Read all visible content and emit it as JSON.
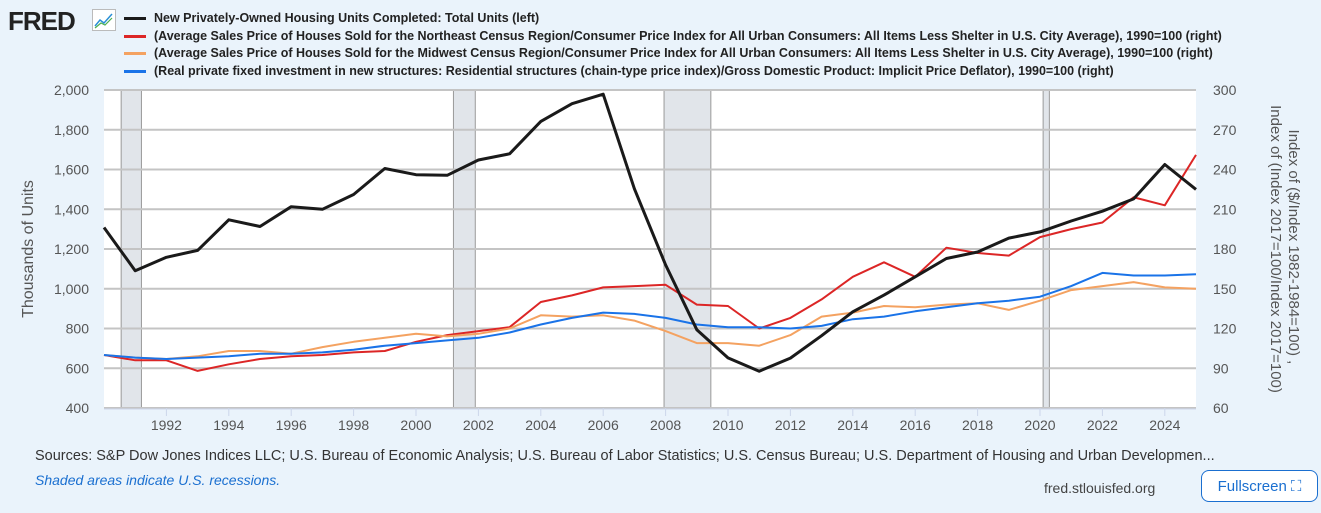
{
  "header": {
    "logo": "FRED"
  },
  "links": {
    "sources": "Sources: S&P Dow Jones Indices LLC; U.S. Bureau of Economic Analysis; U.S. Bureau of Labor Statistics; U.S. Census Bureau; U.S. Department of Housing and Urban Developmen...",
    "recession_note": "Shaded areas indicate U.S. recessions.",
    "site": "fred.stlouisfed.org",
    "fullscreen": "Fullscreen"
  },
  "chart_data": {
    "type": "line",
    "x": [
      1990,
      1991,
      1992,
      1993,
      1994,
      1995,
      1996,
      1997,
      1998,
      1999,
      2000,
      2001,
      2002,
      2003,
      2004,
      2005,
      2006,
      2007,
      2008,
      2009,
      2010,
      2011,
      2012,
      2013,
      2014,
      2015,
      2016,
      2017,
      2018,
      2019,
      2020,
      2021,
      2022,
      2023,
      2024,
      2025
    ],
    "xlim": [
      1990,
      2025
    ],
    "xticks": [
      "1992",
      "1994",
      "1996",
      "1998",
      "2000",
      "2002",
      "2004",
      "2006",
      "2008",
      "2010",
      "2012",
      "2014",
      "2016",
      "2018",
      "2020",
      "2022",
      "2024"
    ],
    "ylabel_left": "Thousands of Units",
    "ylabel_right": "Index of ($/Index 1982-1984=100) , Index of (Index 2017=100/Index 2017=100)",
    "ylim_left": [
      400,
      2000
    ],
    "ylim_right": [
      60,
      300
    ],
    "yticks_left": [
      "2,000",
      "1,800",
      "1,600",
      "1,400",
      "1,200",
      "1,000",
      "800",
      "600",
      "400"
    ],
    "yticks_right": [
      "300",
      "270",
      "240",
      "210",
      "180",
      "150",
      "120",
      "90",
      "60"
    ],
    "grid": true,
    "legend_position": "top",
    "recessions": [
      [
        1990.55,
        1991.2
      ],
      [
        2001.2,
        2001.9
      ],
      [
        2007.95,
        2009.45
      ],
      [
        2020.1,
        2020.3
      ]
    ],
    "series": [
      {
        "name": "New Privately-Owned Housing Units Completed: Total Units (left)",
        "color": "#1a1a1a",
        "axis": "left",
        "width": 3,
        "values": [
          1308,
          1091,
          1158,
          1193,
          1347,
          1313,
          1413,
          1400,
          1474,
          1605,
          1574,
          1571,
          1648,
          1679,
          1842,
          1931,
          1979,
          1503,
          1120,
          794,
          652,
          585,
          651,
          764,
          884,
          968,
          1060,
          1152,
          1185,
          1255,
          1286,
          1341,
          1390,
          1452,
          1625,
          1500
        ]
      },
      {
        "name": "(Average Sales Price of Houses Sold for the Northeast Census Region/Consumer Price Index for All Urban Consumers: All Items Less Shelter in U.S. City Average), 1990=100 (right)",
        "color": "#dc2626",
        "axis": "right",
        "width": 2,
        "values": [
          100,
          96,
          96,
          88,
          93,
          97,
          99,
          100,
          102,
          103,
          110,
          115,
          118,
          121,
          140,
          145,
          151,
          152,
          153,
          138,
          137,
          120,
          128,
          142,
          159,
          170,
          159,
          181,
          177,
          175,
          189,
          195,
          200,
          219,
          213,
          251
        ]
      },
      {
        "name": "(Average Sales Price of Houses Sold for the Midwest Census Region/Consumer Price Index for All Urban Consumers: All Items Less Shelter in U.S. City Average), 1990=100 (right)",
        "color": "#f4a261",
        "axis": "right",
        "width": 2,
        "values": [
          100,
          98,
          97,
          99,
          103,
          103,
          101,
          106,
          110,
          113,
          116,
          114,
          116,
          120,
          130,
          129,
          130,
          126,
          118,
          109,
          109,
          107,
          115,
          129,
          132,
          137,
          136,
          138,
          139,
          134,
          141,
          149,
          152,
          155,
          151,
          150
        ]
      },
      {
        "name": "(Real private fixed investment in new structures: Residential structures (chain-type price index)/Gross Domestic Product: Implicit Price Deflator), 1990=100 (right)",
        "color": "#1a73e8",
        "axis": "right",
        "width": 2,
        "values": [
          100,
          98,
          97,
          98,
          99,
          101,
          101,
          102,
          104,
          107,
          109,
          111,
          113,
          117,
          123,
          128,
          132,
          131,
          128,
          123,
          121,
          121,
          120,
          122,
          127,
          129,
          133,
          136,
          139,
          141,
          144,
          152,
          162,
          160,
          160,
          161
        ]
      }
    ]
  }
}
